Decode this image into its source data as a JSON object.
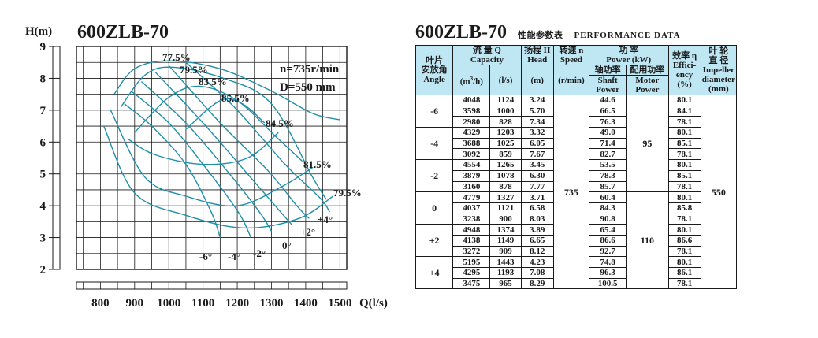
{
  "chart": {
    "title": "600ZLB-70",
    "y_axis_label": "H(m)",
    "x_axis_label": "Q(l/s)",
    "info_line1": "n=735r/min",
    "info_line2": "D=550 mm"
  },
  "chart_data": {
    "type": "line",
    "title": "600ZLB-70",
    "xlabel": "Q(l/s)",
    "ylabel": "H(m)",
    "xlim": [
      730,
      1520
    ],
    "ylim": [
      2,
      9
    ],
    "x_ticks": [
      "800",
      "900",
      "1000",
      "1100",
      "1200",
      "1300",
      "1400",
      "1500"
    ],
    "y_ticks": [
      "2",
      "3",
      "4",
      "5",
      "6",
      "7",
      "8",
      "9"
    ],
    "grid": true,
    "series": [
      {
        "name": "-6°",
        "points": [
          [
            870,
            7.2
          ],
          [
            950,
            6.5
          ],
          [
            1050,
            5.3
          ],
          [
            1124,
            3.8
          ],
          [
            1150,
            3.0
          ]
        ]
      },
      {
        "name": "-4°",
        "points": [
          [
            890,
            7.6
          ],
          [
            1000,
            6.6
          ],
          [
            1100,
            5.3
          ],
          [
            1203,
            3.8
          ],
          [
            1240,
            3.0
          ]
        ]
      },
      {
        "name": "-2°",
        "points": [
          [
            920,
            7.9
          ],
          [
            1050,
            6.6
          ],
          [
            1170,
            5.1
          ],
          [
            1265,
            3.8
          ],
          [
            1300,
            3.2
          ]
        ]
      },
      {
        "name": "0°",
        "points": [
          [
            960,
            8.2
          ],
          [
            1100,
            6.6
          ],
          [
            1230,
            5.0
          ],
          [
            1327,
            3.8
          ],
          [
            1360,
            3.4
          ]
        ]
      },
      {
        "name": "+2°",
        "points": [
          [
            1000,
            8.4
          ],
          [
            1150,
            6.6
          ],
          [
            1290,
            5.1
          ],
          [
            1374,
            4.0
          ],
          [
            1410,
            3.6
          ]
        ]
      },
      {
        "name": "+4°",
        "points": [
          [
            1050,
            8.5
          ],
          [
            1193,
            7.08
          ],
          [
            1340,
            5.3
          ],
          [
            1443,
            4.23
          ],
          [
            1470,
            3.8
          ]
        ]
      }
    ],
    "efficiency_labels": [
      "77.5%",
      "79.5%",
      "83.5%",
      "85.5%",
      "84.5%",
      "81.5%",
      "79.5%"
    ],
    "efficiency_contours": [
      {
        "label": "77.5%",
        "points": [
          [
            840,
            7.5
          ],
          [
            900,
            8.3
          ],
          [
            1000,
            8.55
          ],
          [
            1150,
            8.3
          ],
          [
            1300,
            7.6
          ],
          [
            1420,
            6.9
          ],
          [
            1500,
            6.7
          ]
        ]
      },
      {
        "label": "79.5%",
        "points": [
          [
            860,
            7.1
          ],
          [
            930,
            8.1
          ],
          [
            1010,
            8.35
          ],
          [
            1160,
            8.0
          ],
          [
            1300,
            7.2
          ],
          [
            1420,
            4.9
          ],
          [
            1460,
            4.2
          ]
        ]
      },
      {
        "label": "83.5%",
        "points": [
          [
            900,
            6.3
          ],
          [
            1000,
            7.4
          ],
          [
            1090,
            7.75
          ],
          [
            1200,
            7.3
          ],
          [
            1310,
            6.2
          ],
          [
            1390,
            5.4
          ]
        ]
      },
      {
        "label": "85.5%",
        "points": [
          [
            1050,
            6.4
          ],
          [
            1150,
            7.3
          ],
          [
            1215,
            7.2
          ],
          [
            1280,
            6.6
          ]
        ]
      },
      {
        "label": "84.5%",
        "points": [
          [
            880,
            6.1
          ],
          [
            960,
            5.6
          ],
          [
            1100,
            5.3
          ],
          [
            1230,
            5.5
          ],
          [
            1320,
            6.3
          ]
        ]
      },
      {
        "label": "81.5%",
        "points": [
          [
            830,
            7.0
          ],
          [
            930,
            4.9
          ],
          [
            1050,
            4.3
          ],
          [
            1200,
            4.0
          ],
          [
            1330,
            4.6
          ],
          [
            1420,
            5.2
          ]
        ]
      },
      {
        "label": "79.5%",
        "points": [
          [
            810,
            6.5
          ],
          [
            900,
            4.4
          ],
          [
            1050,
            3.7
          ],
          [
            1220,
            3.3
          ],
          [
            1380,
            3.6
          ],
          [
            1480,
            4.3
          ]
        ]
      }
    ]
  },
  "table": {
    "title": "600ZLB-70",
    "title_cn": "性能参数表",
    "title_en": "PERFORMANCE DATA",
    "headers": {
      "angle_cn1": "叶片",
      "angle_cn2": "安放角",
      "angle_en": "Angle",
      "capacity_cn": "流 量 Q",
      "capacity_en": "Capacity",
      "capacity_unit1_base": "(m",
      "capacity_unit1_sup": "3",
      "capacity_unit1_rest": "/h)",
      "capacity_unit2": "(l/s)",
      "head_cn": "扬程 H",
      "head_en": "Head",
      "head_unit": "(m)",
      "speed_cn": "转速 n",
      "speed_en": "Speed",
      "speed_unit": "(r/min)",
      "power_cn": "功    率",
      "power_en": "Power (kW)",
      "shaft_cn": "轴功率",
      "shaft_en1": "Shaft",
      "shaft_en2": "Power",
      "motor_cn": "配用功率",
      "motor_en1": "Motor",
      "motor_en2": "Power",
      "eff_cn": "效率 η",
      "eff_en1": "Effici-",
      "eff_en2": "ency",
      "eff_unit": "(%)",
      "imp_cn1": "叶 轮",
      "imp_cn2": "直 径",
      "imp_en1": "Impeller",
      "imp_en2": "diameter",
      "imp_unit": "(mm)"
    },
    "speed": "735",
    "motor_power_1": "95",
    "motor_power_2": "110",
    "impeller": "550",
    "groups": [
      {
        "angle": "-6",
        "rows": [
          {
            "q_m3h": "4048",
            "q_ls": "1124",
            "head": "3.24",
            "shaft": "44.6",
            "eff": "80.1"
          },
          {
            "q_m3h": "3598",
            "q_ls": "1000",
            "head": "5.70",
            "shaft": "66.5",
            "eff": "84.1"
          },
          {
            "q_m3h": "2980",
            "q_ls": "828",
            "head": "7.34",
            "shaft": "76.3",
            "eff": "78.1"
          }
        ]
      },
      {
        "angle": "-4",
        "rows": [
          {
            "q_m3h": "4329",
            "q_ls": "1203",
            "head": "3.32",
            "shaft": "49.0",
            "eff": "80.1"
          },
          {
            "q_m3h": "3688",
            "q_ls": "1025",
            "head": "6.05",
            "shaft": "71.4",
            "eff": "85.1"
          },
          {
            "q_m3h": "3092",
            "q_ls": "859",
            "head": "7.67",
            "shaft": "82.7",
            "eff": "78.1"
          }
        ]
      },
      {
        "angle": "-2",
        "rows": [
          {
            "q_m3h": "4554",
            "q_ls": "1265",
            "head": "3.45",
            "shaft": "53.5",
            "eff": "80.1"
          },
          {
            "q_m3h": "3879",
            "q_ls": "1078",
            "head": "6.30",
            "shaft": "78.3",
            "eff": "85.1"
          },
          {
            "q_m3h": "3160",
            "q_ls": "878",
            "head": "7.77",
            "shaft": "85.7",
            "eff": "78.1"
          }
        ]
      },
      {
        "angle": "0",
        "rows": [
          {
            "q_m3h": "4779",
            "q_ls": "1327",
            "head": "3.71",
            "shaft": "60.4",
            "eff": "80.1"
          },
          {
            "q_m3h": "4037",
            "q_ls": "1121",
            "head": "6.58",
            "shaft": "84.3",
            "eff": "85.8"
          },
          {
            "q_m3h": "3238",
            "q_ls": "900",
            "head": "8.03",
            "shaft": "90.8",
            "eff": "78.1"
          }
        ]
      },
      {
        "angle": "+2",
        "rows": [
          {
            "q_m3h": "4948",
            "q_ls": "1374",
            "head": "3.89",
            "shaft": "65.4",
            "eff": "80.1"
          },
          {
            "q_m3h": "4138",
            "q_ls": "1149",
            "head": "6.65",
            "shaft": "86.6",
            "eff": "86.6"
          },
          {
            "q_m3h": "3272",
            "q_ls": "909",
            "head": "8.12",
            "shaft": "92.7",
            "eff": "78.1"
          }
        ]
      },
      {
        "angle": "+4",
        "rows": [
          {
            "q_m3h": "5195",
            "q_ls": "1443",
            "head": "4.23",
            "shaft": "74.8",
            "eff": "80.1"
          },
          {
            "q_m3h": "4295",
            "q_ls": "1193",
            "head": "7.08",
            "shaft": "96.3",
            "eff": "86.1"
          },
          {
            "q_m3h": "3475",
            "q_ls": "965",
            "head": "8.29",
            "shaft": "100.5",
            "eff": "78.1"
          }
        ]
      }
    ]
  }
}
